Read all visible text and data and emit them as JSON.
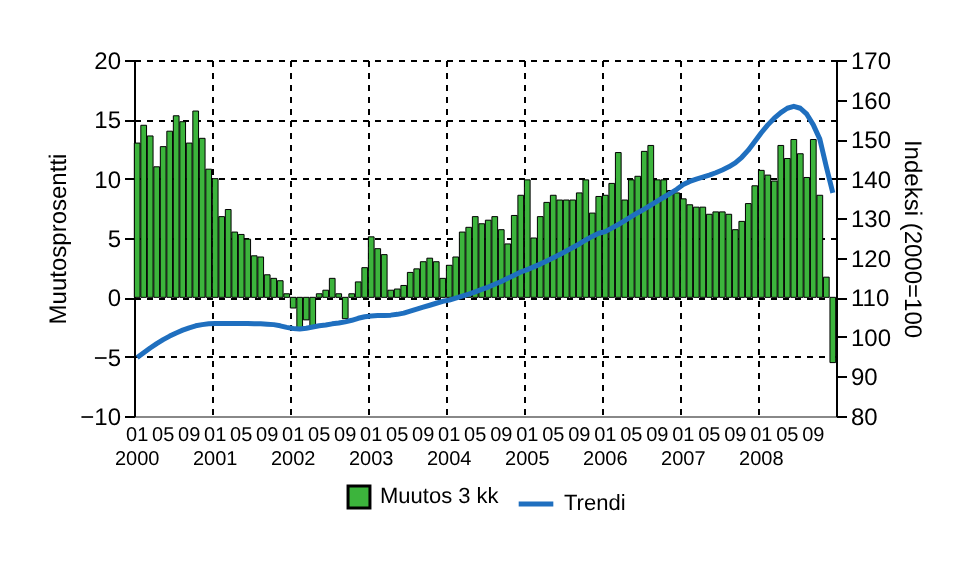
{
  "chart_data": {
    "type": "bar",
    "categories": [
      "01\n2000",
      null,
      null,
      null,
      "05",
      null,
      null,
      null,
      "09",
      null,
      null,
      null,
      "01\n2001",
      null,
      null,
      null,
      "05",
      null,
      null,
      null,
      "09",
      null,
      null,
      null,
      "01\n2002",
      null,
      null,
      null,
      "05",
      null,
      null,
      null,
      "09",
      null,
      null,
      null,
      "01\n2003",
      null,
      null,
      null,
      "05",
      null,
      null,
      null,
      "09",
      null,
      null,
      null,
      "01\n2004",
      null,
      null,
      null,
      "05",
      null,
      null,
      null,
      "09",
      null,
      null,
      null,
      "01\n2005",
      null,
      null,
      null,
      "05",
      null,
      null,
      null,
      "09",
      null,
      null,
      null,
      "01\n2006",
      null,
      null,
      null,
      "05",
      null,
      null,
      null,
      "09",
      null,
      null,
      null,
      "01\n2007",
      null,
      null,
      null,
      "05",
      null,
      null,
      null,
      "09",
      null,
      null,
      null,
      "01\n2008",
      null,
      null,
      null,
      "05",
      null,
      null,
      null,
      "09",
      null,
      null,
      null
    ],
    "series": [
      {
        "name": "Muutos 3 kk",
        "color": "#3cb43c",
        "values": [
          13,
          14.5,
          13.6,
          11,
          12.7,
          14,
          15.3,
          14.8,
          13,
          15.7,
          13.4,
          10.8,
          10,
          6.8,
          7.4,
          5.5,
          5.3,
          4.9,
          3.5,
          3.4,
          1.9,
          1.6,
          1.4,
          0.3,
          -0.9,
          -2.6,
          -1.9,
          -2.5,
          0.3,
          0.6,
          1.6,
          0.3,
          -1.8,
          0.3,
          1.3,
          2.5,
          5.1,
          4.1,
          3.6,
          0.6,
          0.7,
          1,
          2.1,
          2.4,
          3,
          3.3,
          3,
          1.6,
          2.7,
          3.4,
          5.5,
          5.9,
          6.8,
          6.2,
          6.5,
          6.8,
          5.7,
          4.5,
          6.9,
          8.6,
          9.9,
          5,
          6.8,
          8,
          8.6,
          8.2,
          8.2,
          8.2,
          8.8,
          9.9,
          7.1,
          8.5,
          8.6,
          9.6,
          12.2,
          8.2,
          9.9,
          10.2,
          12.3,
          12.8,
          9.9,
          9.9,
          9,
          8.8,
          8.3,
          7.8,
          7.6,
          7.6,
          7,
          7.2,
          7.2,
          7,
          5.7,
          6.4,
          7.9,
          9.4,
          10.7,
          10.3,
          9.8,
          12.8,
          11.7,
          13.3,
          12.1,
          10.1,
          13.3,
          8.6,
          1.7,
          -5.5
        ]
      },
      {
        "name": "Trendi",
        "type": "line",
        "axis": "y2",
        "color": "#1f6fbf",
        "values": [
          94.8,
          96,
          97.2,
          98.3,
          99.3,
          100.2,
          101,
          101.7,
          102.3,
          102.8,
          103.1,
          103.3,
          103.4,
          103.4,
          103.4,
          103.4,
          103.4,
          103.4,
          103.3,
          103.3,
          103.2,
          103.1,
          102.8,
          102.4,
          102.1,
          102,
          102.2,
          102.5,
          102.8,
          103,
          103.3,
          103.5,
          103.8,
          104.2,
          104.7,
          105.1,
          105.3,
          105.4,
          105.4,
          105.5,
          105.7,
          106,
          106.5,
          107,
          107.5,
          108,
          108.5,
          109,
          109.3,
          109.8,
          110.3,
          110.8,
          111.4,
          112,
          112.6,
          113.3,
          114,
          114.8,
          115.6,
          116.4,
          117,
          117.7,
          118.4,
          119.2,
          120,
          120.8,
          121.7,
          122.6,
          123.5,
          124.5,
          125.4,
          126.2,
          126.6,
          127.5,
          128.4,
          129.4,
          130.4,
          131.4,
          132.3,
          133.3,
          134.3,
          135.3,
          136.3,
          137.3,
          138.5,
          139.3,
          139.9,
          140.4,
          140.9,
          141.5,
          142.2,
          143,
          144,
          145.4,
          147.2,
          149.4,
          151.6,
          153.6,
          155.3,
          156.7,
          157.8,
          158.3,
          157.8,
          156.3,
          153.6,
          150,
          143,
          136.4
        ]
      }
    ],
    "ylabel": "Muutosprosentti",
    "y2label": "Indeksi (2000=100",
    "ylim": [
      -10,
      20
    ],
    "yticks": [
      -10,
      -5,
      0,
      5,
      10,
      15,
      20
    ],
    "y2lim": [
      80,
      170
    ],
    "y2ticks": [
      80,
      90,
      100,
      110,
      120,
      130,
      140,
      150,
      160,
      170
    ],
    "grid": true,
    "legend": "bottom",
    "marker": "none"
  }
}
